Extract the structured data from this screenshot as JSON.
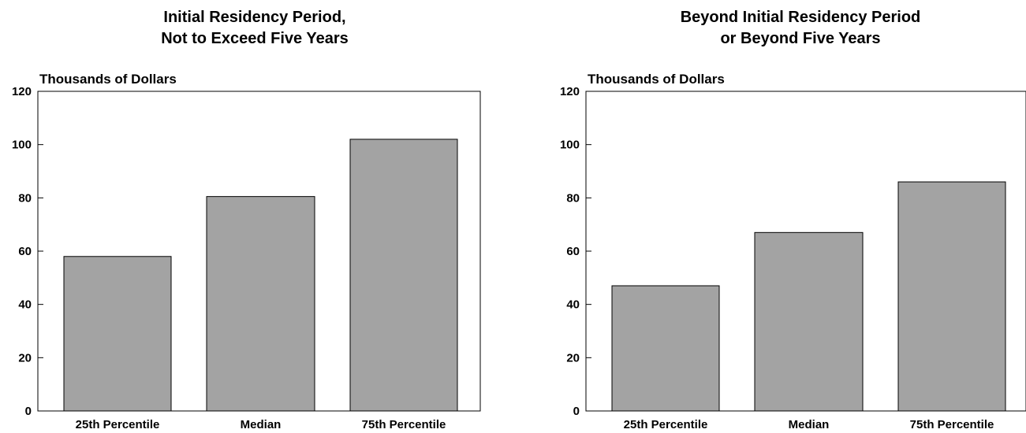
{
  "colors": {
    "bar_fill": "#a3a3a3",
    "bar_stroke": "#000000",
    "axis": "#000000"
  },
  "chart_data": [
    {
      "type": "bar",
      "title": "Initial Residency Period, Not to Exceed Five Years",
      "title_lines": [
        "Initial Residency Period,",
        "Not to Exceed Five Years"
      ],
      "xlabel": "",
      "ylabel": "Thousands of Dollars",
      "ylim": [
        0,
        120
      ],
      "yticks": [
        "0",
        "20",
        "40",
        "60",
        "80",
        "100",
        "120"
      ],
      "grid": false,
      "categories": [
        "25th Percentile",
        "Median",
        "75th Percentile"
      ],
      "values": [
        58,
        80.5,
        102
      ]
    },
    {
      "type": "bar",
      "title": "Beyond Initial Residency Period or Beyond Five Years",
      "title_lines": [
        "Beyond Initial Residency Period",
        "or Beyond Five Years"
      ],
      "xlabel": "",
      "ylabel": "Thousands of Dollars",
      "ylim": [
        0,
        120
      ],
      "yticks": [
        "0",
        "20",
        "40",
        "60",
        "80",
        "100",
        "120"
      ],
      "grid": false,
      "categories": [
        "25th Percentile",
        "Median",
        "75th Percentile"
      ],
      "values": [
        47,
        67,
        86
      ]
    }
  ]
}
